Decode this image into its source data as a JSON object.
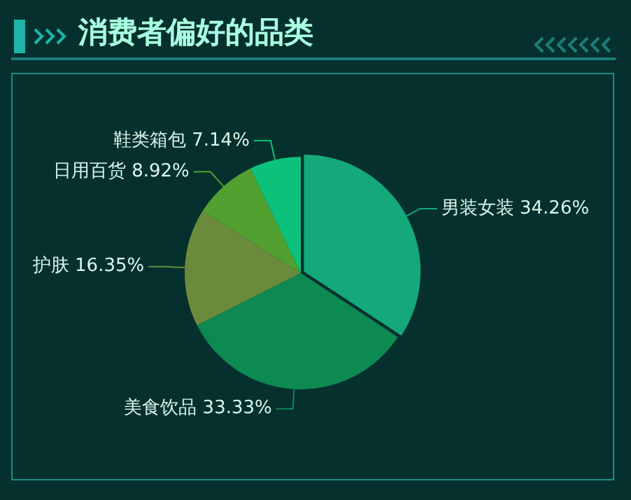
{
  "chart_data": {
    "type": "pie",
    "title": "消费者偏好的品类",
    "categories": [
      "男装女装",
      "美食饮品",
      "护肤",
      "日用百货",
      "鞋类箱包"
    ],
    "values": [
      34.26,
      33.33,
      16.35,
      8.92,
      7.14
    ],
    "value_labels": [
      "34.26%",
      "33.33%",
      "16.35%",
      "8.92%",
      "7.14%"
    ],
    "colors": [
      "#14a87a",
      "#0c8a52",
      "#6b8b3c",
      "#52a030",
      "#0cc27a"
    ],
    "legend": false
  }
}
